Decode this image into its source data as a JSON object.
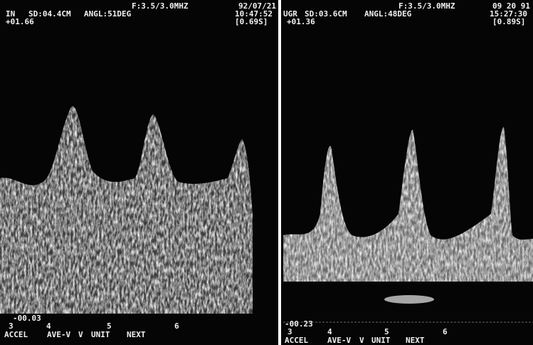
{
  "panels": [
    {
      "header": {
        "frequency": "F:3.5/3.0MHZ",
        "date": "92/07/21",
        "label": "IN",
        "sample_depth": "SD:04.4CM",
        "angle": "ANGL:51DEG",
        "time": "10:47:52",
        "scale_top": "+01.66",
        "sweep": "[0.69S]"
      },
      "scale_bottom": "-00.03",
      "ticks": [
        "3",
        "4",
        "5",
        "6"
      ],
      "menu": [
        "ACCEL",
        "AVE-V",
        "V",
        "UNIT",
        "NEXT"
      ]
    },
    {
      "header": {
        "frequency": "F:3.5/3.0MHZ",
        "date": "09 20 91",
        "label": "UGR",
        "sample_depth": "SD:03.6CM",
        "angle": "ANGL:48DEG",
        "time": "15:27:30",
        "scale_top": "+01.36",
        "sweep": "[0.89S]"
      },
      "scale_bottom": "-00.23",
      "ticks": [
        "3",
        "4",
        "5",
        "6"
      ],
      "menu": [
        "ACCEL",
        "AVE-V",
        "V",
        "UNIT",
        "NEXT"
      ]
    }
  ]
}
